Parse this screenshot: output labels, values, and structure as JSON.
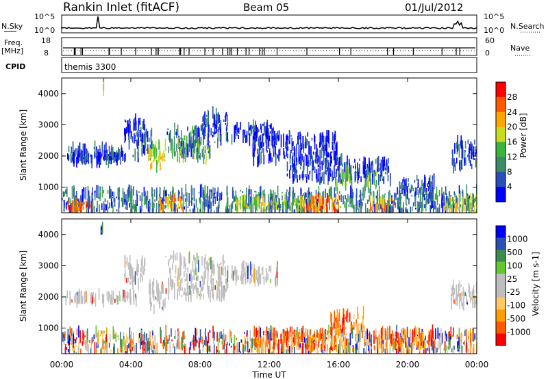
{
  "header": {
    "station": "Rankin Inlet (fitACF)",
    "beam": "Beam 05",
    "date": "01/Jul/2012"
  },
  "top_panels": {
    "nsky_label": "N.Sky",
    "nsearch_label": "N.Search",
    "nsky_ticks": [
      "10^5",
      "10^0"
    ],
    "nsearch_ticks": [
      "10^5",
      "10^0"
    ],
    "freq_label_1": "Freq.",
    "freq_label_2": "[MHz]",
    "freq_ticks": [
      "18",
      "8"
    ],
    "nave_label": "Nave",
    "nave_ticks": [
      "60",
      "0"
    ],
    "cpid_label": "CPID",
    "cpid_value": "themis 3300"
  },
  "colors": {
    "power_scale": [
      "#0000ff",
      "#2a4fb8",
      "#3c8c6a",
      "#3cb43c",
      "#c8dc1e",
      "#ffa500",
      "#ff5a00",
      "#ff0000"
    ],
    "velocity_scale": [
      "#ff0000",
      "#ff5a00",
      "#ff9c00",
      "#ffc864",
      "#bebebe",
      "#bebebe",
      "#64c832",
      "#3c8c50",
      "#2a50b4",
      "#0000ff"
    ],
    "ground_scatter": "#bebebe"
  },
  "chart_data": [
    {
      "type": "heatmap",
      "name": "power",
      "ylabel": "Slant Range [km]",
      "xlabel": "",
      "x_range_hours": [
        0,
        24
      ],
      "y_range_km": [
        180,
        4500
      ],
      "yticks": [
        1000,
        2000,
        3000,
        4000
      ],
      "colorbar_label": "Power [dB]",
      "colorbar_range": [
        0,
        32
      ],
      "colorbar_ticks": [
        4,
        8,
        12,
        16,
        20,
        24,
        28
      ],
      "grid": false,
      "regions": [
        {
          "t": [
            0.2,
            4.5
          ],
          "r": [
            1900,
            2050
          ],
          "level": 0.1
        },
        {
          "t": [
            0.3,
            3.5
          ],
          "r": [
            1800,
            2300
          ],
          "level": 0.15
        },
        {
          "t": [
            2.2,
            2.4
          ],
          "r": [
            4050,
            4300
          ],
          "level": 0.5
        },
        {
          "t": [
            3.6,
            4.8
          ],
          "r": [
            2400,
            3200
          ],
          "level": 0.15
        },
        {
          "t": [
            4.2,
            5.2
          ],
          "r": [
            2000,
            2800
          ],
          "level": 0.2
        },
        {
          "t": [
            5.0,
            6.0
          ],
          "r": [
            1600,
            2400
          ],
          "level": 0.55
        },
        {
          "t": [
            6.0,
            8.0
          ],
          "r": [
            2100,
            2900
          ],
          "level": 0.25
        },
        {
          "t": [
            6.4,
            7.2
          ],
          "r": [
            1900,
            2500
          ],
          "level": 0.4
        },
        {
          "t": [
            7.4,
            8.6
          ],
          "r": [
            1900,
            2600
          ],
          "level": 0.35
        },
        {
          "t": [
            8.0,
            9.6
          ],
          "r": [
            2400,
            3400
          ],
          "level": 0.15
        },
        {
          "t": [
            9.8,
            12.5
          ],
          "r": [
            2500,
            3000
          ],
          "level": 0.1
        },
        {
          "t": [
            11.0,
            16.0
          ],
          "r": [
            1800,
            2700
          ],
          "level": 0.1
        },
        {
          "t": [
            13.0,
            19.0
          ],
          "r": [
            1200,
            1900
          ],
          "level": 0.12
        },
        {
          "t": [
            15.8,
            16.8
          ],
          "r": [
            1000,
            1600
          ],
          "level": 0.45
        },
        {
          "t": [
            17.5,
            18.3
          ],
          "r": [
            1000,
            1500
          ],
          "level": 0.45
        },
        {
          "t": [
            19.5,
            21.5
          ],
          "r": [
            700,
            1300
          ],
          "level": 0.2
        },
        {
          "t": [
            22.5,
            24.0
          ],
          "r": [
            1600,
            2500
          ],
          "level": 0.15
        },
        {
          "t": [
            0.0,
            24.0
          ],
          "r": [
            200,
            900
          ],
          "level": 0.25
        },
        {
          "t": [
            0.3,
            1.8
          ],
          "r": [
            200,
            500
          ],
          "level": 0.8
        },
        {
          "t": [
            5.6,
            7.0
          ],
          "r": [
            250,
            700
          ],
          "level": 0.7
        },
        {
          "t": [
            10.0,
            14.0
          ],
          "r": [
            250,
            600
          ],
          "level": 0.55
        },
        {
          "t": [
            14.0,
            16.0
          ],
          "r": [
            200,
            650
          ],
          "level": 0.75
        },
        {
          "t": [
            17.8,
            19.2
          ],
          "r": [
            300,
            650
          ],
          "level": 0.6
        },
        {
          "t": [
            22.0,
            24.0
          ],
          "r": [
            200,
            700
          ],
          "level": 0.55
        }
      ]
    },
    {
      "type": "heatmap",
      "name": "velocity",
      "ylabel": "Slant Range [km]",
      "xlabel": "Time UT",
      "x_range_hours": [
        0,
        24
      ],
      "y_range_km": [
        180,
        4500
      ],
      "yticks": [
        1000,
        2000,
        3000,
        4000
      ],
      "xticks": [
        "00:00",
        "04:00",
        "08:00",
        "12:00",
        "16:00",
        "20:00",
        "00:00"
      ],
      "colorbar_label": "Velocity [m s-1]",
      "colorbar_ticks": [
        "1000",
        "500",
        "100",
        "25",
        "-25",
        "-100",
        "-500",
        "-1000"
      ],
      "grid": false,
      "regions": [
        {
          "t": [
            0.2,
            4.5
          ],
          "r": [
            1850,
            2100
          ],
          "level": "gs"
        },
        {
          "t": [
            3.6,
            4.8
          ],
          "r": [
            2400,
            3200
          ],
          "level": "gs"
        },
        {
          "t": [
            5.0,
            6.0
          ],
          "r": [
            1600,
            2500
          ],
          "level": "gs"
        },
        {
          "t": [
            6.0,
            9.6
          ],
          "r": [
            2000,
            3300
          ],
          "level": "gs"
        },
        {
          "t": [
            9.8,
            12.5
          ],
          "r": [
            2500,
            3000
          ],
          "level": "gs"
        },
        {
          "t": [
            22.5,
            24.0
          ],
          "r": [
            1700,
            2400
          ],
          "level": "gs"
        },
        {
          "t": [
            0.0,
            24.0
          ],
          "r": [
            200,
            900
          ],
          "level": "mix"
        },
        {
          "t": [
            11.0,
            16.5
          ],
          "r": [
            300,
            900
          ],
          "level": "neg"
        },
        {
          "t": [
            15.5,
            17.5
          ],
          "r": [
            900,
            1500
          ],
          "level": "neg"
        },
        {
          "t": [
            18.0,
            21.5
          ],
          "r": [
            300,
            900
          ],
          "level": "neg"
        },
        {
          "t": [
            2.2,
            2.4
          ],
          "r": [
            4050,
            4300
          ],
          "level": "pos"
        }
      ]
    }
  ]
}
